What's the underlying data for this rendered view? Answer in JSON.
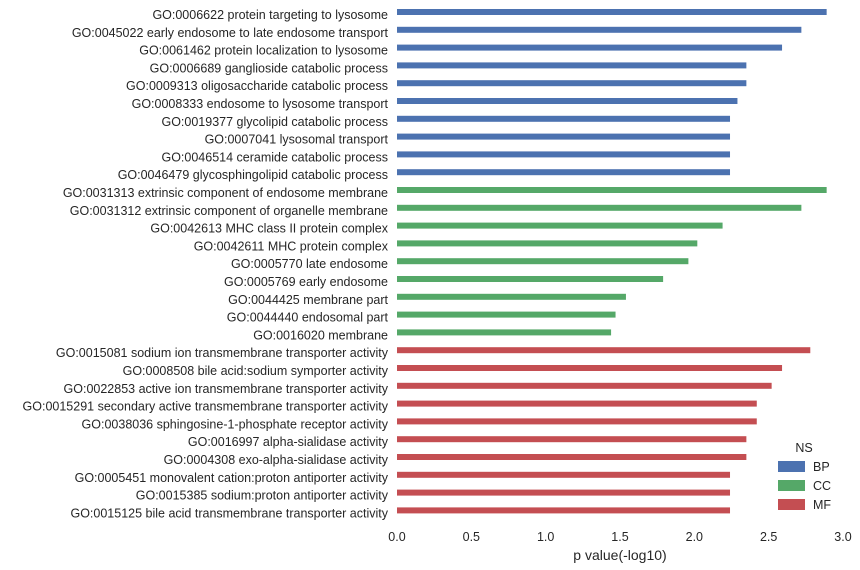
{
  "chart_data": {
    "type": "bar",
    "orientation": "horizontal",
    "xlabel": "p value(-log10)",
    "xlim": [
      0.0,
      3.0
    ],
    "xticks": [
      "0.0",
      "0.5",
      "1.0",
      "1.5",
      "2.0",
      "2.5",
      "3.0"
    ],
    "grid": false,
    "legend": {
      "title": "NS",
      "placement": "lower-right",
      "entries": [
        "BP",
        "CC",
        "MF"
      ]
    },
    "series_colors": {
      "BP": "#4c72b0",
      "CC": "#55a868",
      "MF": "#c44e52"
    },
    "categories": [
      {
        "label": "GO:0006622 protein targeting to lysosome",
        "ns": "BP",
        "value": 2.89
      },
      {
        "label": "GO:0045022 early endosome to late endosome transport",
        "ns": "BP",
        "value": 2.72
      },
      {
        "label": "GO:0061462 protein localization to lysosome",
        "ns": "BP",
        "value": 2.59
      },
      {
        "label": "GO:0006689 ganglioside catabolic process",
        "ns": "BP",
        "value": 2.35
      },
      {
        "label": "GO:0009313 oligosaccharide catabolic process",
        "ns": "BP",
        "value": 2.35
      },
      {
        "label": "GO:0008333 endosome to lysosome transport",
        "ns": "BP",
        "value": 2.29
      },
      {
        "label": "GO:0019377 glycolipid catabolic process",
        "ns": "BP",
        "value": 2.24
      },
      {
        "label": "GO:0007041 lysosomal transport",
        "ns": "BP",
        "value": 2.24
      },
      {
        "label": "GO:0046514 ceramide catabolic process",
        "ns": "BP",
        "value": 2.24
      },
      {
        "label": "GO:0046479 glycosphingolipid catabolic process",
        "ns": "BP",
        "value": 2.24
      },
      {
        "label": "GO:0031313 extrinsic component of endosome membrane",
        "ns": "CC",
        "value": 2.89
      },
      {
        "label": "GO:0031312 extrinsic component of organelle membrane",
        "ns": "CC",
        "value": 2.72
      },
      {
        "label": "GO:0042613 MHC class II protein complex",
        "ns": "CC",
        "value": 2.19
      },
      {
        "label": "GO:0042611 MHC protein complex",
        "ns": "CC",
        "value": 2.02
      },
      {
        "label": "GO:0005770 late endosome",
        "ns": "CC",
        "value": 1.96
      },
      {
        "label": "GO:0005769 early endosome",
        "ns": "CC",
        "value": 1.79
      },
      {
        "label": "GO:0044425 membrane part",
        "ns": "CC",
        "value": 1.54
      },
      {
        "label": "GO:0044440 endosomal part",
        "ns": "CC",
        "value": 1.47
      },
      {
        "label": "GO:0016020 membrane",
        "ns": "CC",
        "value": 1.44
      },
      {
        "label": "GO:0015081 sodium ion transmembrane transporter activity",
        "ns": "MF",
        "value": 2.78
      },
      {
        "label": "GO:0008508 bile acid:sodium symporter activity",
        "ns": "MF",
        "value": 2.59
      },
      {
        "label": "GO:0022853 active ion transmembrane transporter activity",
        "ns": "MF",
        "value": 2.52
      },
      {
        "label": "GO:0015291 secondary active transmembrane transporter activity",
        "ns": "MF",
        "value": 2.42
      },
      {
        "label": "GO:0038036 sphingosine-1-phosphate receptor activity",
        "ns": "MF",
        "value": 2.42
      },
      {
        "label": "GO:0016997 alpha-sialidase activity",
        "ns": "MF",
        "value": 2.35
      },
      {
        "label": "GO:0004308 exo-alpha-sialidase activity",
        "ns": "MF",
        "value": 2.35
      },
      {
        "label": "GO:0005451 monovalent cation:proton antiporter activity",
        "ns": "MF",
        "value": 2.24
      },
      {
        "label": "GO:0015385 sodium:proton antiporter activity",
        "ns": "MF",
        "value": 2.24
      },
      {
        "label": "GO:0015125 bile acid transmembrane transporter activity",
        "ns": "MF",
        "value": 2.24
      }
    ]
  }
}
